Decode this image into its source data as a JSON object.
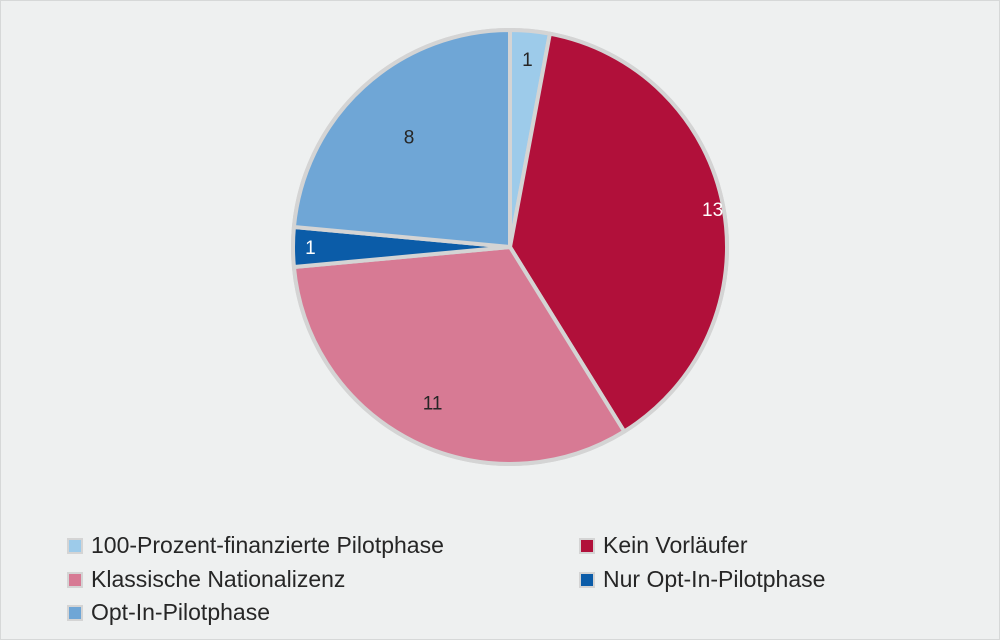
{
  "chart_data": {
    "type": "pie",
    "title": "",
    "slices": [
      {
        "label": "100-Prozent-finanzierte Pilotphase",
        "value": 1,
        "color": "#9dcbea"
      },
      {
        "label": "Kein Vorläufer",
        "value": 13,
        "color": "#b1103a"
      },
      {
        "label": "Klassische Nationalizenz",
        "value": 11,
        "color": "#d77a94"
      },
      {
        "label": "Nur Opt-In-Pilotphase",
        "value": 1,
        "color": "#0b5ca8"
      },
      {
        "label": "Opt-In-Pilotphase",
        "value": 8,
        "color": "#6fa6d6"
      }
    ],
    "data_labels": [
      "1",
      "13",
      "11",
      "1",
      "8"
    ],
    "legend_position": "bottom",
    "start_angle": "12 o'clock, clockwise"
  }
}
